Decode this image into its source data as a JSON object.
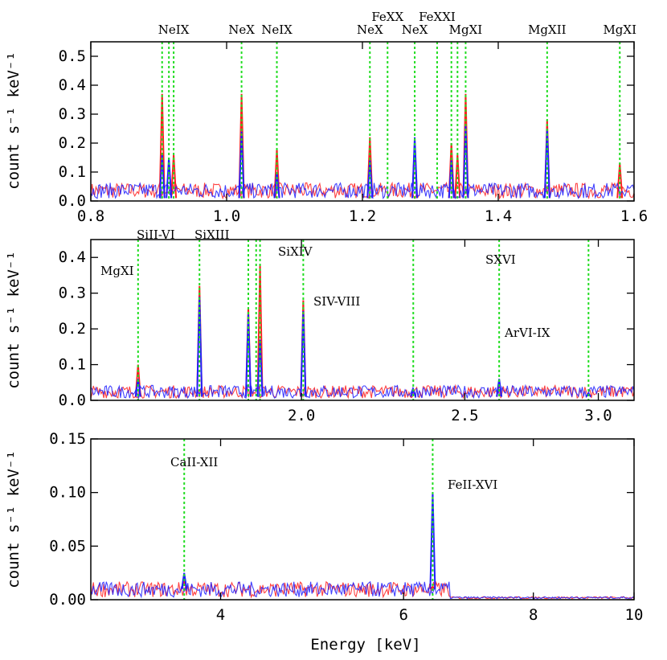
{
  "colors": {
    "series_red": "#ff2020",
    "series_blue": "#2020ff",
    "marker": "#22dd22"
  },
  "xlabel": "Energy [keV]",
  "chart_data": [
    {
      "type": "line",
      "ylabel": "count s⁻¹ keV⁻¹",
      "xlim": [
        0.8,
        1.6
      ],
      "ylim": [
        0,
        0.55
      ],
      "xscale": "linear",
      "xticks": [
        0.8,
        1.0,
        1.2,
        1.4,
        1.6
      ],
      "xtick_labels": [
        "0.8",
        "1.0",
        "1.2",
        "1.4",
        "1.6"
      ],
      "yticks": [
        0,
        0.1,
        0.2,
        0.3,
        0.4,
        0.5
      ],
      "ytick_labels": [
        "0.0",
        "0.1",
        "0.2",
        "0.3",
        "0.4",
        "0.5"
      ],
      "lines": [
        {
          "energy": 0.922,
          "label": "NeIX"
        },
        {
          "energy": 0.905
        },
        {
          "energy": 0.915
        },
        {
          "energy": 1.022,
          "label": "NeX"
        },
        {
          "energy": 1.074,
          "label": "NeIX"
        },
        {
          "energy": 1.211,
          "label": "NeX"
        },
        {
          "energy": 1.237,
          "label": "FeXX"
        },
        {
          "energy": 1.277,
          "label": "NeX"
        },
        {
          "energy": 1.31,
          "label": "FeXXI"
        },
        {
          "energy": 1.331
        },
        {
          "energy": 1.34
        },
        {
          "energy": 1.352,
          "label": "MgXI"
        },
        {
          "energy": 1.472,
          "label": "MgXII"
        },
        {
          "energy": 1.579,
          "label": "MgXI"
        }
      ],
      "background_level": 0.03,
      "peaks_red": [
        [
          0.905,
          0.37
        ],
        [
          0.922,
          0.16
        ],
        [
          1.022,
          0.37
        ],
        [
          1.074,
          0.18
        ],
        [
          1.211,
          0.22
        ],
        [
          1.277,
          0.2
        ],
        [
          1.331,
          0.2
        ],
        [
          1.34,
          0.16
        ],
        [
          1.352,
          0.37
        ],
        [
          1.472,
          0.28
        ],
        [
          1.579,
          0.13
        ]
      ],
      "peaks_blue": [
        [
          0.905,
          0.16
        ],
        [
          0.915,
          0.15
        ],
        [
          1.022,
          0.24
        ],
        [
          1.074,
          0.1
        ],
        [
          1.211,
          0.14
        ],
        [
          1.277,
          0.22
        ],
        [
          1.331,
          0.14
        ],
        [
          1.352,
          0.26
        ],
        [
          1.472,
          0.25
        ]
      ]
    },
    {
      "type": "line",
      "ylabel": "count s⁻¹ keV⁻¹",
      "xlim": [
        1.5,
        3.15
      ],
      "ylim": [
        0,
        0.45
      ],
      "xscale": "log",
      "xticks": [
        2.0,
        2.5,
        3.0
      ],
      "xtick_labels": [
        "2.0",
        "2.5",
        "3.0"
      ],
      "yticks": [
        0,
        0.1,
        0.2,
        0.3,
        0.4
      ],
      "ytick_labels": [
        "0.0",
        "0.1",
        "0.2",
        "0.3",
        "0.4"
      ],
      "lines": [
        {
          "energy": 1.6,
          "label": "MgXI"
        },
        {
          "energy": 1.74,
          "label": "SiII-VI"
        },
        {
          "energy": 1.86,
          "label": "SiXIII"
        },
        {
          "energy": 1.88
        },
        {
          "energy": 1.89
        },
        {
          "energy": 2.005,
          "label": "SiXIV"
        },
        {
          "energy": 2.33,
          "label": "SIV-VIII"
        },
        {
          "energy": 2.62,
          "label": "SXVI"
        },
        {
          "energy": 2.96,
          "label": "ArVI-IX"
        }
      ],
      "background_level": 0.02,
      "peaks_red": [
        [
          1.6,
          0.1
        ],
        [
          1.74,
          0.32
        ],
        [
          1.86,
          0.26
        ],
        [
          1.89,
          0.38
        ],
        [
          2.005,
          0.28
        ],
        [
          2.33,
          0.03
        ],
        [
          2.62,
          0.05
        ]
      ],
      "peaks_blue": [
        [
          1.6,
          0.06
        ],
        [
          1.74,
          0.29
        ],
        [
          1.86,
          0.24
        ],
        [
          1.89,
          0.17
        ],
        [
          2.005,
          0.25
        ],
        [
          2.33,
          0.03
        ],
        [
          2.62,
          0.06
        ],
        [
          2.96,
          0.02
        ]
      ]
    },
    {
      "type": "line",
      "ylabel": "count s⁻¹ keV⁻¹",
      "xlim": [
        3.0,
        10.0
      ],
      "ylim": [
        0,
        0.15
      ],
      "xscale": "log",
      "xticks": [
        4,
        6,
        8,
        10
      ],
      "xtick_labels": [
        "4",
        "6",
        "8",
        "10"
      ],
      "yticks": [
        0,
        0.05,
        0.1,
        0.15
      ],
      "ytick_labels": [
        "0.00",
        "0.05",
        "0.10",
        "0.15"
      ],
      "lines": [
        {
          "energy": 3.69,
          "label": "CaII-XII"
        },
        {
          "energy": 6.4,
          "label": "FeII-XVI"
        }
      ],
      "background_level": 0.008,
      "peaks_red": [
        [
          3.69,
          0.018
        ],
        [
          6.4,
          0.012
        ]
      ],
      "peaks_blue": [
        [
          3.69,
          0.025
        ],
        [
          6.4,
          0.1
        ]
      ]
    }
  ]
}
